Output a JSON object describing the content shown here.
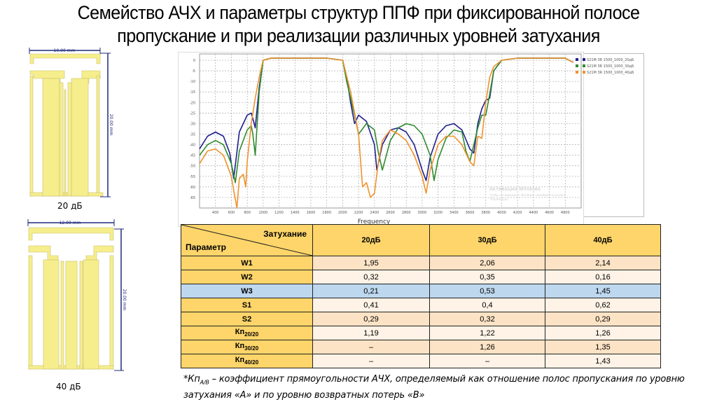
{
  "title": {
    "line1": "Семейство АЧХ и параметры структур ППФ при фиксированной полосе",
    "line2": "пропускание и при реализации различных уровней затухания"
  },
  "structures": [
    {
      "label": "20 дБ",
      "width_dim": "10.00 mm",
      "height_dim": "20.00 mm"
    },
    {
      "label": "40 дБ",
      "width_dim": "12.00 mm",
      "height_dim": "20.00 mm"
    }
  ],
  "chart_data": {
    "type": "line",
    "title": "",
    "xlabel": "Frequency",
    "ylabel": "",
    "xlim": [
      200,
      5000
    ],
    "ylim": [
      -70,
      3
    ],
    "x_ticks": [
      400,
      600,
      800,
      1000,
      1200,
      1400,
      1600,
      1800,
      2000,
      2200,
      2400,
      2600,
      2800,
      3000,
      3200,
      3400,
      3600,
      3800,
      4000,
      4200,
      4400,
      4600,
      4800
    ],
    "y_ticks": [
      0,
      -5,
      -10,
      -15,
      -20,
      -25,
      -30,
      -35,
      -40,
      -45,
      -50,
      -55,
      -60,
      -65
    ],
    "y_tick_labels": [
      "0",
      "-5",
      "-10",
      "-15",
      "-20",
      "-25",
      "-30",
      "-35",
      "-40",
      "-45",
      "-50",
      "-55",
      "-60",
      "-65"
    ],
    "grid": true,
    "legend_position": "top-right",
    "series": [
      {
        "name": "S21M 3R 1500_1000_20дБ",
        "color": "#1f1f8f",
        "x": [
          200,
          300,
          400,
          500,
          580,
          630,
          700,
          800,
          850,
          880,
          900,
          950,
          1000,
          1100,
          1400,
          1800,
          2000,
          2050,
          2100,
          2150,
          2200,
          2300,
          2400,
          2430,
          2500,
          2600,
          2700,
          2800,
          2900,
          3000,
          3050,
          3100,
          3200,
          3300,
          3400,
          3500,
          3600,
          3650,
          3700,
          3750,
          3800,
          3850,
          3900,
          4000,
          4200,
          4500,
          4800,
          4900
        ],
        "y": [
          -42,
          -36,
          -34,
          -36,
          -44,
          -56,
          -34,
          -26,
          -25,
          -29,
          -32,
          -13,
          0,
          1,
          1,
          1,
          0,
          -8,
          -20,
          -30,
          -26,
          -29,
          -40,
          -52,
          -40,
          -33,
          -32,
          -34,
          -40,
          -52,
          -57,
          -46,
          -35,
          -31,
          -30,
          -33,
          -42,
          -44,
          -30,
          -23,
          -19,
          -18,
          -5,
          0,
          1,
          1,
          1,
          -1
        ]
      },
      {
        "name": "S21M 3R 1500_1000_30дБ",
        "color": "#2e8b2e",
        "x": [
          200,
          300,
          400,
          500,
          600,
          650,
          700,
          800,
          850,
          870,
          900,
          950,
          1000,
          1100,
          1400,
          1800,
          2000,
          2050,
          2150,
          2200,
          2300,
          2400,
          2450,
          2500,
          2600,
          2700,
          2800,
          2900,
          3000,
          3100,
          3150,
          3200,
          3300,
          3400,
          3500,
          3550,
          3600,
          3700,
          3750,
          3800,
          3850,
          3900,
          4000,
          4200,
          4500,
          4800,
          4900
        ],
        "y": [
          -45,
          -40,
          -38,
          -40,
          -49,
          -58,
          -43,
          -33,
          -31,
          -35,
          -45,
          -15,
          0,
          1,
          1,
          1,
          0,
          -10,
          -26,
          -35,
          -30,
          -33,
          -44,
          -52,
          -38,
          -32,
          -30,
          -31,
          -35,
          -45,
          -57,
          -47,
          -37,
          -33,
          -34,
          -43,
          -48,
          -32,
          -26,
          -26,
          -16,
          -5,
          0,
          1,
          1,
          1,
          -1
        ]
      },
      {
        "name": "S21M 3R 1500_1000_40дБ",
        "color": "#f0922b",
        "x": [
          200,
          300,
          400,
          500,
          600,
          640,
          670,
          700,
          750,
          780,
          800,
          850,
          900,
          950,
          1000,
          1100,
          1400,
          1800,
          2000,
          2100,
          2200,
          2250,
          2300,
          2350,
          2400,
          2450,
          2500,
          2600,
          2700,
          2800,
          2900,
          3000,
          3050,
          3100,
          3200,
          3300,
          3400,
          3500,
          3600,
          3650,
          3700,
          3750,
          3800,
          3850,
          3900,
          4000,
          4200,
          4500,
          4800,
          4900
        ],
        "y": [
          -49,
          -43,
          -42,
          -45,
          -55,
          -64,
          -70,
          -56,
          -54,
          -60,
          -48,
          -30,
          -18,
          -8,
          0,
          1,
          1,
          1,
          0,
          -15,
          -35,
          -60,
          -58,
          -65,
          -63,
          -48,
          -38,
          -33,
          -35,
          -38,
          -45,
          -55,
          -63,
          -52,
          -40,
          -36,
          -36,
          -40,
          -48,
          -50,
          -36,
          -37,
          -20,
          -8,
          -3,
          0,
          1,
          1,
          1,
          -1
        ]
      }
    ]
  },
  "watermark": {
    "line1": "Активация Windows",
    "line2": "Чтобы активировать Windows, перейдите в раздел",
    "line3": "\"Параметры\"."
  },
  "table": {
    "corner_top": "Затухание",
    "corner_bottom": "Параметр",
    "columns": [
      "20дБ",
      "30дБ",
      "40дБ"
    ],
    "rows": [
      {
        "param": "W1",
        "sub": "",
        "values": [
          "1,95",
          "2,06",
          "2,14"
        ]
      },
      {
        "param": "W2",
        "sub": "",
        "values": [
          "0,32",
          "0,35",
          "0,16"
        ]
      },
      {
        "param": "W3",
        "sub": "",
        "values": [
          "0,21",
          "0,53",
          "1,45"
        ]
      },
      {
        "param": "S1",
        "sub": "",
        "values": [
          "0,41",
          "0,4",
          "0,62"
        ]
      },
      {
        "param": "S2",
        "sub": "",
        "values": [
          "0,29",
          "0,32",
          "0,29"
        ]
      },
      {
        "param": "Кп",
        "sub": "20/20",
        "values": [
          "1,19",
          "1,22",
          "1,26"
        ]
      },
      {
        "param": "Кп",
        "sub": "30/20",
        "values": [
          "–",
          "1,26",
          "1,35"
        ]
      },
      {
        "param": "Кп",
        "sub": "40/20",
        "values": [
          "–",
          "–",
          "1,43"
        ]
      }
    ]
  },
  "footnote": {
    "prefix": "*Кп",
    "sub": "A/B",
    "text1": " – коэффициент прямоугольности АЧХ, определяемый как отношение полос пропускания по уровню",
    "text2": "затухания «А» и по уровню возвратных потерь «В»"
  }
}
